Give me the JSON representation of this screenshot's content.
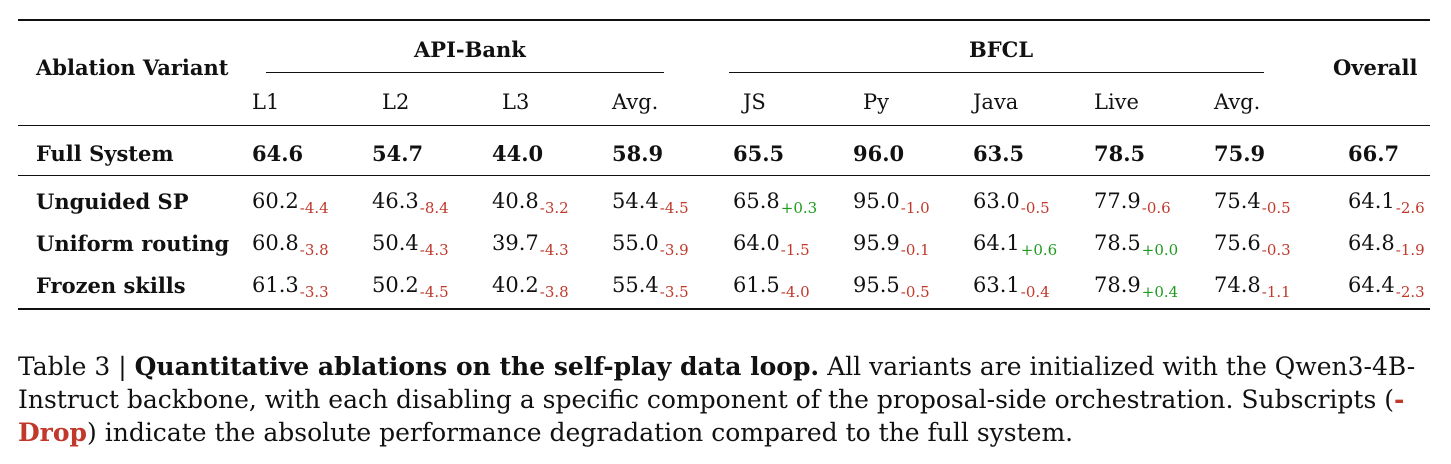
{
  "table": {
    "row_header": "Ablation Variant",
    "groups": [
      {
        "name": "API-Bank",
        "columns": [
          "L1",
          "L2",
          "L3",
          "Avg."
        ]
      },
      {
        "name": "BFCL",
        "columns": [
          "JS",
          "Py",
          "Java",
          "Live",
          "Avg."
        ]
      }
    ],
    "overall_header": "Overall",
    "full_system": {
      "label": "Full System",
      "values": [
        "64.6",
        "54.7",
        "44.0",
        "58.9",
        "65.5",
        "96.0",
        "63.5",
        "78.5",
        "75.9",
        "66.7"
      ]
    },
    "variants": [
      {
        "label": "Unguided SP",
        "cells": [
          {
            "v": "60.2",
            "d": "-4.4"
          },
          {
            "v": "46.3",
            "d": "-8.4"
          },
          {
            "v": "40.8",
            "d": "-3.2"
          },
          {
            "v": "54.4",
            "d": "-4.5"
          },
          {
            "v": "65.8",
            "d": "+0.3"
          },
          {
            "v": "95.0",
            "d": "-1.0"
          },
          {
            "v": "63.0",
            "d": "-0.5"
          },
          {
            "v": "77.9",
            "d": "-0.6"
          },
          {
            "v": "75.4",
            "d": "-0.5"
          },
          {
            "v": "64.1",
            "d": "-2.6"
          }
        ]
      },
      {
        "label": "Uniform routing",
        "cells": [
          {
            "v": "60.8",
            "d": "-3.8"
          },
          {
            "v": "50.4",
            "d": "-4.3"
          },
          {
            "v": "39.7",
            "d": "-4.3"
          },
          {
            "v": "55.0",
            "d": "-3.9"
          },
          {
            "v": "64.0",
            "d": "-1.5"
          },
          {
            "v": "95.9",
            "d": "-0.1"
          },
          {
            "v": "64.1",
            "d": "+0.6"
          },
          {
            "v": "78.5",
            "d": "+0.0"
          },
          {
            "v": "75.6",
            "d": "-0.3"
          },
          {
            "v": "64.8",
            "d": "-1.9"
          }
        ]
      },
      {
        "label": "Frozen skills",
        "cells": [
          {
            "v": "61.3",
            "d": "-3.3"
          },
          {
            "v": "50.2",
            "d": "-4.5"
          },
          {
            "v": "40.2",
            "d": "-3.8"
          },
          {
            "v": "55.4",
            "d": "-3.5"
          },
          {
            "v": "61.5",
            "d": "-4.0"
          },
          {
            "v": "95.5",
            "d": "-0.5"
          },
          {
            "v": "63.1",
            "d": "-0.4"
          },
          {
            "v": "78.9",
            "d": "+0.4"
          },
          {
            "v": "74.8",
            "d": "-1.1"
          },
          {
            "v": "64.4",
            "d": "-2.3"
          }
        ]
      }
    ]
  },
  "caption": {
    "prefix": "Table 3 | ",
    "bold_title": "Quantitative ablations on the self-play data loop.",
    "text1": " All variants are initialized with the Qwen3-4B-Instruct backbone, with each disabling a specific component of the proposal-side orchestration. Subscripts (",
    "drop_label": "-Drop",
    "text2": ") indicate the absolute performance degradation compared to the full system."
  },
  "colors": {
    "negative": "#c0392b",
    "positive": "#1e9a1e"
  }
}
